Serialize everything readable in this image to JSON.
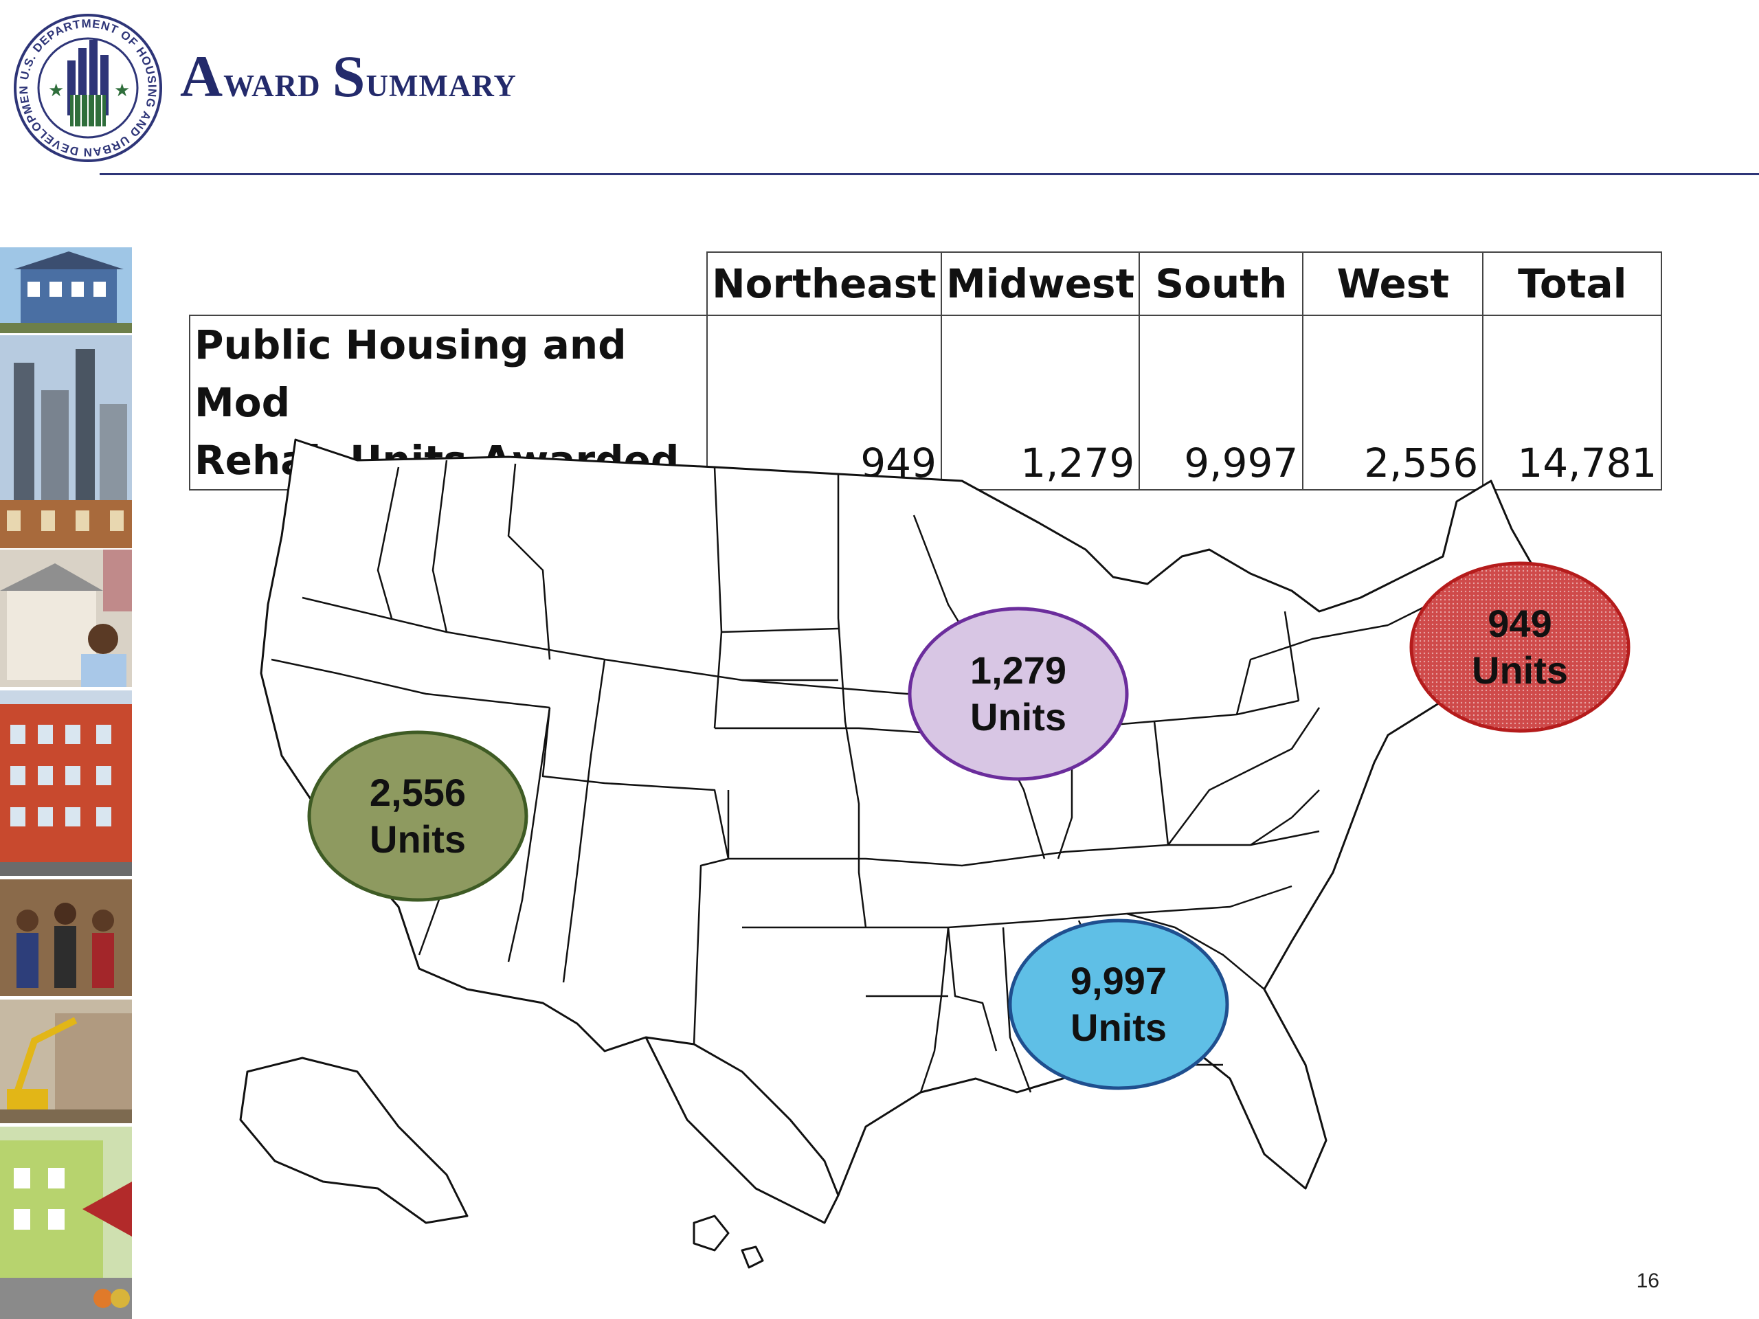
{
  "header": {
    "title_first_initial": "A",
    "title_first_rest": "ward",
    "title_second_initial": "S",
    "title_second_rest": "ummary",
    "seal_text": "U.S. DEPARTMENT OF HOUSING AND URBAN DEVELOPMENT"
  },
  "table": {
    "columns": [
      "Northeast",
      "Midwest",
      "South",
      "West",
      "Total"
    ],
    "row_label_line1": "Public Housing and Mod",
    "row_label_line2": "Rehab Units Awarded",
    "values": [
      "949",
      "1,279",
      "9,997",
      "2,556",
      "14,781"
    ]
  },
  "map": {
    "regions": [
      {
        "name": "Northeast",
        "value": "949",
        "unit": "Units",
        "color": "#cf4a4a"
      },
      {
        "name": "Midwest",
        "value": "1,279",
        "unit": "Units",
        "color": "#d8c6e4"
      },
      {
        "name": "South",
        "value": "9,997",
        "unit": "Units",
        "color": "#5fbfe6"
      },
      {
        "name": "West",
        "value": "2,556",
        "unit": "Units",
        "color": "#8e9a60"
      }
    ]
  },
  "footer": {
    "page_number": "16"
  },
  "colors": {
    "title": "#232a6b",
    "rule": "#2e3578",
    "seal_green": "#2f6e3b"
  }
}
